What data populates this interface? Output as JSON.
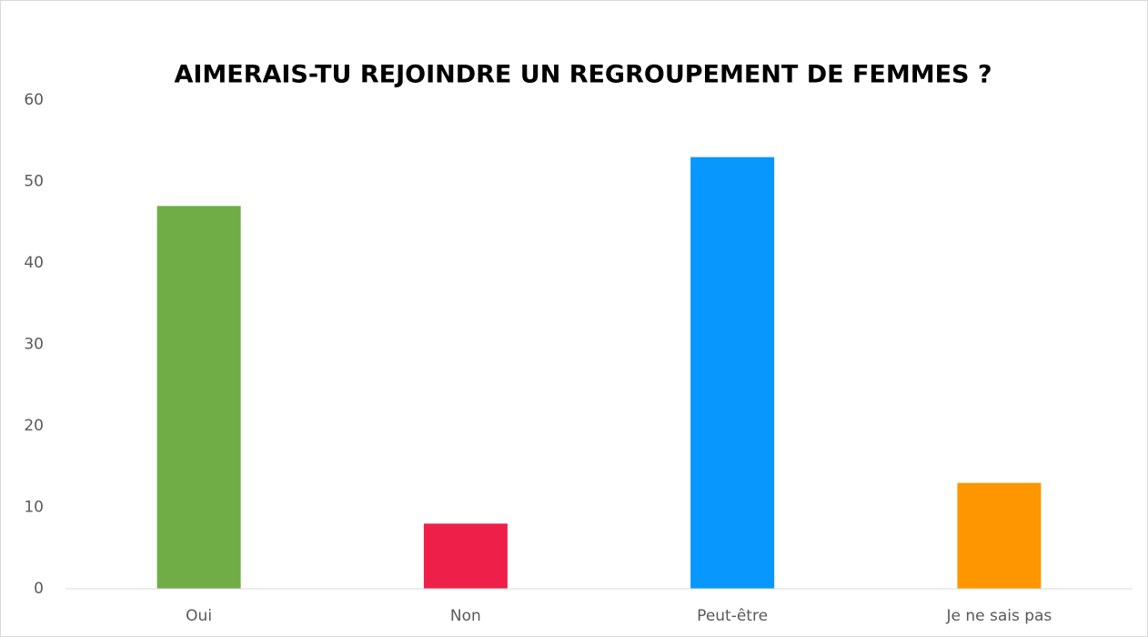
{
  "chart_data": {
    "type": "bar",
    "title": "AIMERAIS-TU REJOINDRE UN REGROUPEMENT DE FEMMES ?",
    "categories": [
      "Oui",
      "Non",
      "Peut-être",
      "Je ne sais pas"
    ],
    "values": [
      47,
      8,
      53,
      13
    ],
    "colors": [
      "#70ad47",
      "#ee1f48",
      "#0897fc",
      "#fd9600"
    ],
    "ylim": [
      0,
      60
    ],
    "yticks": [
      0,
      10,
      20,
      30,
      40,
      50,
      60
    ],
    "grid": false
  }
}
